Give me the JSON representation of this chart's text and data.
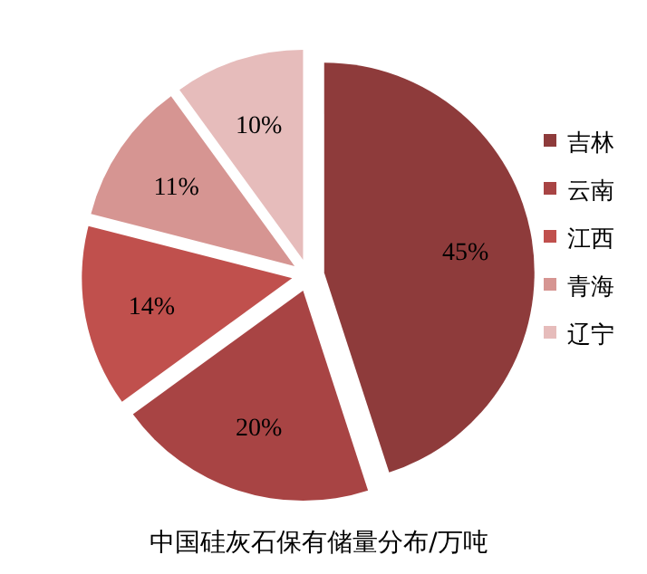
{
  "chart_data": {
    "type": "pie",
    "title": "中国硅灰石保有储量分布/万吨",
    "categories": [
      "吉林",
      "云南",
      "江西",
      "青海",
      "辽宁"
    ],
    "values": [
      45,
      20,
      14,
      11,
      10
    ],
    "colors": [
      "#8e3b3b",
      "#a84444",
      "#c0504d",
      "#d69592",
      "#e6bcbb"
    ],
    "value_labels": [
      "45%",
      "20%",
      "14%",
      "11%",
      "10%"
    ],
    "legend": "right"
  }
}
